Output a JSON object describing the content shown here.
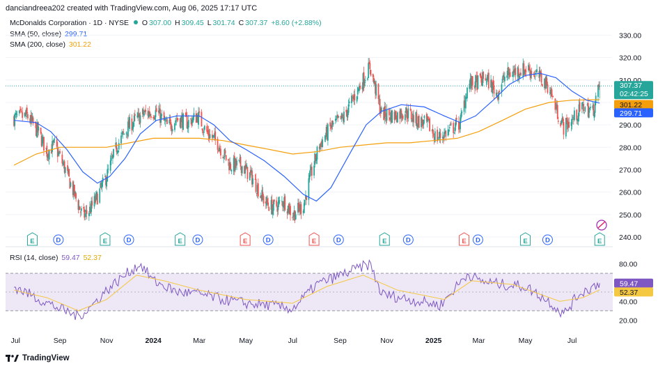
{
  "header": {
    "text": "danciandreea202 created with TradingView.com, Aug 06, 2025 17:17 UTC"
  },
  "legend": {
    "symbol": "McDonalds Corporation · 1D · NYSE",
    "o_label": "O",
    "o": "307.00",
    "h_label": "H",
    "h": "309.45",
    "l_label": "L",
    "l": "301.74",
    "c_label": "C",
    "c": "307.37",
    "change": "+8.60 (+2.88%)",
    "sma50_label": "SMA (50, close)",
    "sma50": "299.71",
    "sma200_label": "SMA (200, close)",
    "sma200": "301.22",
    "rsi_label": "RSI (14, close)",
    "rsi": "59.47",
    "rsi_ma": "52.37"
  },
  "price_axis": {
    "ticks": [
      "330.00",
      "320.00",
      "310.00",
      "300.00",
      "290.00",
      "280.00",
      "270.00",
      "260.00",
      "250.00",
      "240.00"
    ]
  },
  "rsi_axis": {
    "ticks": [
      "80.00",
      "60.00",
      "40.00",
      "20.00"
    ]
  },
  "price_tags": {
    "last": "307.37",
    "countdown": "02:42:25",
    "sma200": "301.22",
    "sma50": "299.71"
  },
  "rsi_tags": {
    "rsi": "59.47",
    "rsi_ma": "52.37"
  },
  "time_axis": {
    "labels": [
      "Jul",
      "Sep",
      "Nov",
      "2024",
      "Mar",
      "May",
      "Jul",
      "Sep",
      "Nov",
      "2025",
      "Mar",
      "May",
      "Jul"
    ]
  },
  "events": {
    "earnings": "E",
    "dividend": "D"
  },
  "footer": {
    "brand": "TradingView"
  },
  "colors": {
    "up": "#26a69a",
    "down": "#ef5350",
    "sma50": "#2962ff",
    "sma200": "#f59e0b",
    "rsi": "#7e57c2",
    "rsi_ma": "#f5c842",
    "rsi_band": "#ede7f6",
    "earn_up": "#26a69a",
    "earn_down": "#ef5350",
    "div": "#2962ff"
  },
  "chart_data": {
    "type": "candlestick",
    "title": "McDonalds Corporation · 1D · NYSE",
    "period": "Jul 2023 – Aug 2025",
    "ylim": [
      240,
      332
    ],
    "close_path": [
      [
        "2023-07-03",
        293
      ],
      [
        "2023-07-20",
        294
      ],
      [
        "2023-08-05",
        286
      ],
      [
        "2023-08-15",
        278
      ],
      [
        "2023-08-25",
        281
      ],
      [
        "2023-09-08",
        270
      ],
      [
        "2023-09-20",
        259
      ],
      [
        "2023-10-01",
        249
      ],
      [
        "2023-10-10",
        252
      ],
      [
        "2023-10-20",
        258
      ],
      [
        "2023-11-01",
        267
      ],
      [
        "2023-11-15",
        281
      ],
      [
        "2023-12-01",
        290
      ],
      [
        "2023-12-20",
        295
      ],
      [
        "2024-01-05",
        296
      ],
      [
        "2024-01-20",
        289
      ],
      [
        "2024-02-01",
        293
      ],
      [
        "2024-02-15",
        291
      ],
      [
        "2024-02-28",
        294
      ],
      [
        "2024-03-10",
        287
      ],
      [
        "2024-03-25",
        282
      ],
      [
        "2024-04-10",
        272
      ],
      [
        "2024-04-25",
        272
      ],
      [
        "2024-05-10",
        266
      ],
      [
        "2024-05-25",
        256
      ],
      [
        "2024-06-05",
        253
      ],
      [
        "2024-06-20",
        256
      ],
      [
        "2024-07-01",
        250
      ],
      [
        "2024-07-15",
        254
      ],
      [
        "2024-07-25",
        268
      ],
      [
        "2024-08-05",
        281
      ],
      [
        "2024-08-20",
        289
      ],
      [
        "2024-09-05",
        293
      ],
      [
        "2024-09-20",
        303
      ],
      [
        "2024-10-01",
        310
      ],
      [
        "2024-10-10",
        316
      ],
      [
        "2024-10-25",
        295
      ],
      [
        "2024-11-10",
        294
      ],
      [
        "2024-11-25",
        296
      ],
      [
        "2024-12-10",
        292
      ],
      [
        "2024-12-25",
        290
      ],
      [
        "2025-01-05",
        284
      ],
      [
        "2025-01-20",
        287
      ],
      [
        "2025-02-05",
        291
      ],
      [
        "2025-02-15",
        308
      ],
      [
        "2025-03-01",
        309
      ],
      [
        "2025-03-10",
        311
      ],
      [
        "2025-03-25",
        304
      ],
      [
        "2025-04-05",
        312
      ],
      [
        "2025-04-20",
        314
      ],
      [
        "2025-05-05",
        315
      ],
      [
        "2025-05-20",
        311
      ],
      [
        "2025-06-01",
        307
      ],
      [
        "2025-06-10",
        297
      ],
      [
        "2025-06-20",
        289
      ],
      [
        "2025-07-01",
        292
      ],
      [
        "2025-07-15",
        298
      ],
      [
        "2025-07-28",
        296
      ],
      [
        "2025-08-06",
        307.37
      ]
    ],
    "last_bar": {
      "open": 307.0,
      "high": 309.45,
      "low": 301.74,
      "close": 307.37,
      "change": 8.6,
      "change_pct": 2.88
    },
    "sma50": [
      [
        "2023-07-03",
        292
      ],
      [
        "2023-08-01",
        291
      ],
      [
        "2023-08-20",
        287
      ],
      [
        "2023-09-10",
        279
      ],
      [
        "2023-10-01",
        269
      ],
      [
        "2023-10-20",
        264
      ],
      [
        "2023-11-05",
        267
      ],
      [
        "2023-11-25",
        275
      ],
      [
        "2023-12-15",
        286
      ],
      [
        "2024-01-05",
        292
      ],
      [
        "2024-02-01",
        294
      ],
      [
        "2024-03-01",
        294
      ],
      [
        "2024-03-20",
        290
      ],
      [
        "2024-04-10",
        283
      ],
      [
        "2024-05-01",
        279
      ],
      [
        "2024-05-25",
        274
      ],
      [
        "2024-06-20",
        267
      ],
      [
        "2024-07-15",
        259
      ],
      [
        "2024-08-01",
        256
      ],
      [
        "2024-08-20",
        262
      ],
      [
        "2024-09-15",
        278
      ],
      [
        "2024-10-05",
        290
      ],
      [
        "2024-10-25",
        296
      ],
      [
        "2024-11-20",
        299
      ],
      [
        "2024-12-20",
        298
      ],
      [
        "2025-01-15",
        294
      ],
      [
        "2025-02-05",
        291
      ],
      [
        "2025-02-25",
        294
      ],
      [
        "2025-03-20",
        301
      ],
      [
        "2025-04-10",
        308
      ],
      [
        "2025-05-01",
        312
      ],
      [
        "2025-05-20",
        313
      ],
      [
        "2025-06-10",
        311
      ],
      [
        "2025-07-01",
        305
      ],
      [
        "2025-07-20",
        301
      ],
      [
        "2025-08-06",
        299.71
      ]
    ],
    "sma200": [
      [
        "2023-07-03",
        272
      ],
      [
        "2023-08-01",
        277
      ],
      [
        "2023-09-01",
        280
      ],
      [
        "2023-10-01",
        280
      ],
      [
        "2023-11-01",
        280
      ],
      [
        "2023-12-01",
        282
      ],
      [
        "2024-01-01",
        284
      ],
      [
        "2024-02-01",
        284
      ],
      [
        "2024-03-01",
        284
      ],
      [
        "2024-04-01",
        283
      ],
      [
        "2024-05-01",
        281
      ],
      [
        "2024-06-01",
        279
      ],
      [
        "2024-07-01",
        277
      ],
      [
        "2024-08-01",
        278
      ],
      [
        "2024-09-01",
        280
      ],
      [
        "2024-10-01",
        281
      ],
      [
        "2024-11-01",
        282
      ],
      [
        "2024-12-01",
        282
      ],
      [
        "2025-01-01",
        283
      ],
      [
        "2025-02-01",
        284
      ],
      [
        "2025-03-01",
        287
      ],
      [
        "2025-04-01",
        292
      ],
      [
        "2025-05-01",
        297
      ],
      [
        "2025-06-01",
        300
      ],
      [
        "2025-07-01",
        301
      ],
      [
        "2025-08-06",
        301.22
      ]
    ],
    "rsi": {
      "ylim": [
        12,
        88
      ],
      "overbought": 70,
      "oversold": 30,
      "last": 59.47,
      "ma_last": 52.37,
      "series": [
        [
          "2023-07-03",
          56
        ],
        [
          "2023-08-01",
          44
        ],
        [
          "2023-09-01",
          32
        ],
        [
          "2023-09-25",
          24
        ],
        [
          "2023-10-10",
          33
        ],
        [
          "2023-11-01",
          52
        ],
        [
          "2023-12-01",
          72
        ],
        [
          "2023-12-15",
          80
        ],
        [
          "2024-01-01",
          62
        ],
        [
          "2024-02-01",
          50
        ],
        [
          "2024-03-01",
          48
        ],
        [
          "2024-04-01",
          42
        ],
        [
          "2024-05-01",
          38
        ],
        [
          "2024-06-01",
          36
        ],
        [
          "2024-07-01",
          32
        ],
        [
          "2024-08-01",
          58
        ],
        [
          "2024-09-01",
          68
        ],
        [
          "2024-10-10",
          80
        ],
        [
          "2024-10-25",
          48
        ],
        [
          "2024-12-01",
          42
        ],
        [
          "2025-01-10",
          36
        ],
        [
          "2025-02-15",
          70
        ],
        [
          "2025-03-01",
          62
        ],
        [
          "2025-04-01",
          58
        ],
        [
          "2025-05-01",
          56
        ],
        [
          "2025-06-01",
          40
        ],
        [
          "2025-06-20",
          26
        ],
        [
          "2025-07-10",
          48
        ],
        [
          "2025-08-06",
          59.47
        ]
      ],
      "ma": [
        [
          "2023-07-03",
          52
        ],
        [
          "2023-08-15",
          44
        ],
        [
          "2023-09-25",
          30
        ],
        [
          "2023-11-01",
          42
        ],
        [
          "2023-12-10",
          68
        ],
        [
          "2024-01-15",
          62
        ],
        [
          "2024-03-01",
          52
        ],
        [
          "2024-05-01",
          42
        ],
        [
          "2024-07-01",
          38
        ],
        [
          "2024-08-15",
          56
        ],
        [
          "2024-10-01",
          68
        ],
        [
          "2024-11-15",
          52
        ],
        [
          "2025-01-15",
          42
        ],
        [
          "2025-02-20",
          62
        ],
        [
          "2025-04-15",
          58
        ],
        [
          "2025-06-15",
          40
        ],
        [
          "2025-07-15",
          44
        ],
        [
          "2025-08-06",
          52.37
        ]
      ]
    },
    "events": [
      [
        "E",
        "up",
        "2023-07-27"
      ],
      [
        "D",
        "div",
        "2023-08-30"
      ],
      [
        "E",
        "up",
        "2023-10-30"
      ],
      [
        "D",
        "div",
        "2023-11-30"
      ],
      [
        "E",
        "up",
        "2024-02-05"
      ],
      [
        "D",
        "div",
        "2024-02-28"
      ],
      [
        "E",
        "down",
        "2024-04-30"
      ],
      [
        "D",
        "div",
        "2024-05-30"
      ],
      [
        "E",
        "down",
        "2024-07-29"
      ],
      [
        "D",
        "div",
        "2024-08-30"
      ],
      [
        "E",
        "up",
        "2024-10-29"
      ],
      [
        "D",
        "div",
        "2024-11-29"
      ],
      [
        "E",
        "down",
        "2025-02-10"
      ],
      [
        "D",
        "div",
        "2025-02-28"
      ],
      [
        "E",
        "up",
        "2025-05-01"
      ],
      [
        "D",
        "div",
        "2025-05-30"
      ],
      [
        "E",
        "up",
        "2025-08-06"
      ]
    ]
  }
}
